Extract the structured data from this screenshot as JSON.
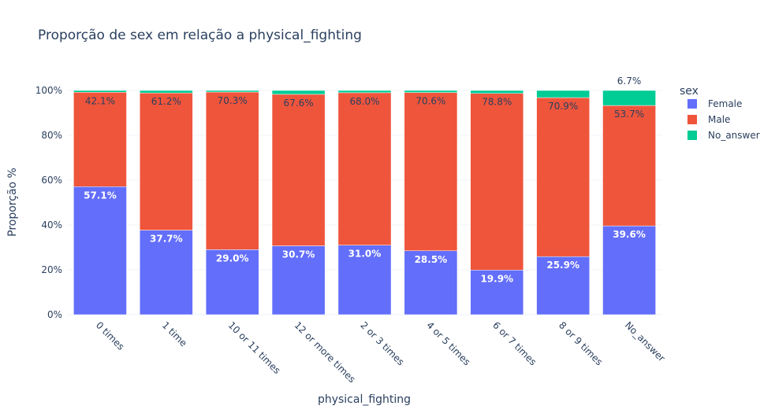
{
  "chart_data": {
    "type": "bar",
    "stacked": true,
    "title": "Proporção de sex em relação a physical_fighting",
    "xlabel": "physical_fighting",
    "ylabel": "Proporção %",
    "ylim": [
      0,
      1
    ],
    "yticks": [
      "0%",
      "20%",
      "40%",
      "60%",
      "80%",
      "100%"
    ],
    "grid": true,
    "legend_title": "sex",
    "legend_position": "top-right",
    "categories": [
      "0 times",
      "1 time",
      "10 or 11 times",
      "12 or more times",
      "2 or 3 times",
      "4 or 5 times",
      "6 or 7 times",
      "8 or 9 times",
      "No_answer"
    ],
    "series": [
      {
        "name": "Female",
        "color": "#636efa",
        "values": [
          0.571,
          0.377,
          0.29,
          0.307,
          0.31,
          0.285,
          0.199,
          0.259,
          0.396
        ],
        "labels": [
          "57.1%",
          "37.7%",
          "29.0%",
          "30.7%",
          "31.0%",
          "28.5%",
          "19.9%",
          "25.9%",
          "39.6%"
        ]
      },
      {
        "name": "Male",
        "color": "#ef553b",
        "values": [
          0.421,
          0.612,
          0.703,
          0.676,
          0.68,
          0.706,
          0.788,
          0.709,
          0.537
        ],
        "labels": [
          "42.1%",
          "61.2%",
          "70.3%",
          "67.6%",
          "68.0%",
          "70.6%",
          "78.8%",
          "70.9%",
          "53.7%"
        ]
      },
      {
        "name": "No_answer",
        "color": "#00cc96",
        "values": [
          0.008,
          0.011,
          0.007,
          0.017,
          0.01,
          0.009,
          0.013,
          0.032,
          0.067
        ],
        "labels": [
          "",
          "",
          "",
          "",
          "",
          "",
          "",
          "",
          "6.7%"
        ]
      }
    ]
  }
}
